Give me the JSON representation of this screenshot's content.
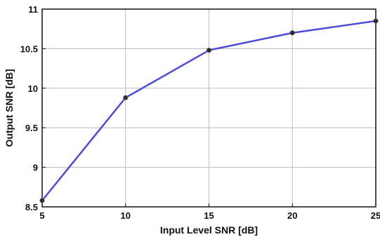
{
  "chart_data": {
    "type": "line",
    "title": "",
    "xlabel": "Input Level SNR [dB]",
    "ylabel": "Output SNR [dB]",
    "xlim": [
      5,
      25
    ],
    "ylim": [
      8.5,
      11
    ],
    "xticks": [
      "5",
      "10",
      "15",
      "20",
      "25"
    ],
    "yticks": [
      "8.5",
      "9",
      "9.5",
      "10",
      "10.5",
      "11"
    ],
    "grid": true,
    "x": [
      5,
      10,
      15,
      20,
      25
    ],
    "series": [
      {
        "values": [
          8.58,
          9.88,
          10.48,
          10.7,
          10.85
        ]
      }
    ],
    "colors": {
      "line": "#4b4bdc",
      "marker": "#2a2a2a",
      "grid": "#bdbdbd",
      "axis": "#111111"
    }
  }
}
